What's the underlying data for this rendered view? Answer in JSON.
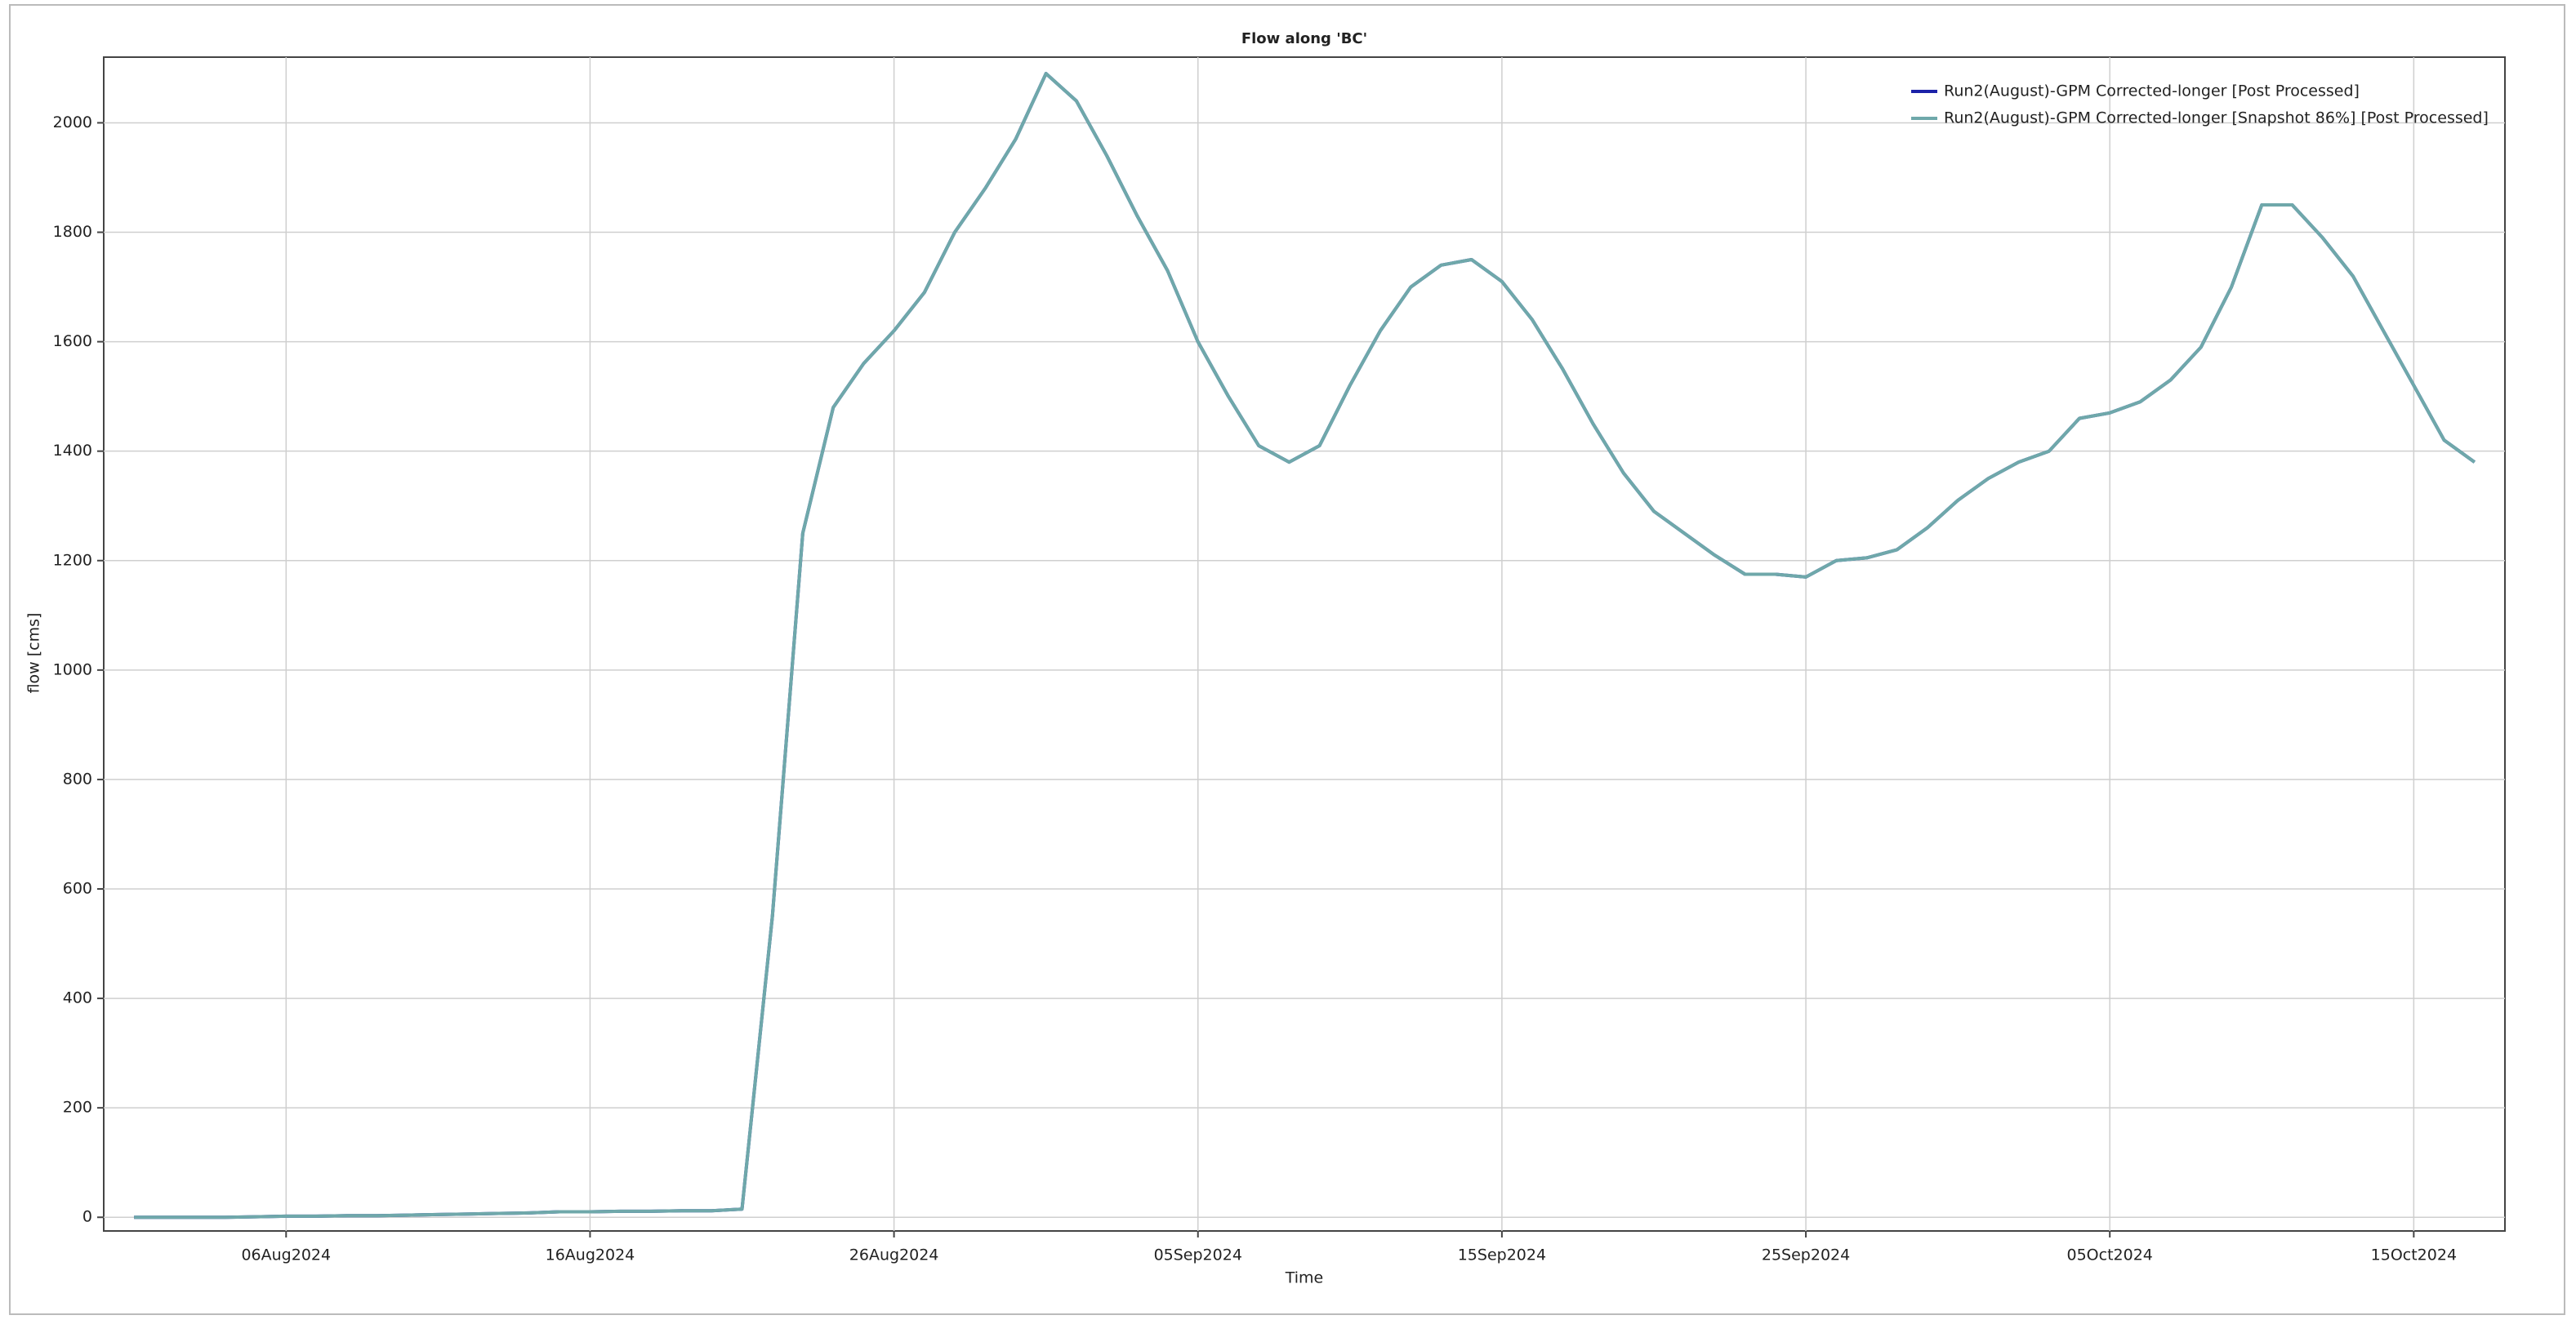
{
  "chart_data": {
    "type": "line",
    "title": "Flow along 'BC'",
    "x_label": "Time",
    "y_label": "flow [cms]",
    "x": [
      "2024-08-01",
      "2024-08-02",
      "2024-08-03",
      "2024-08-04",
      "2024-08-05",
      "2024-08-06",
      "2024-08-07",
      "2024-08-08",
      "2024-08-09",
      "2024-08-10",
      "2024-08-11",
      "2024-08-12",
      "2024-08-13",
      "2024-08-14",
      "2024-08-15",
      "2024-08-16",
      "2024-08-17",
      "2024-08-18",
      "2024-08-19",
      "2024-08-20",
      "2024-08-21",
      "2024-08-22",
      "2024-08-23",
      "2024-08-24",
      "2024-08-25",
      "2024-08-26",
      "2024-08-27",
      "2024-08-28",
      "2024-08-29",
      "2024-08-30",
      "2024-08-31",
      "2024-09-01",
      "2024-09-02",
      "2024-09-03",
      "2024-09-04",
      "2024-09-05",
      "2024-09-06",
      "2024-09-07",
      "2024-09-08",
      "2024-09-09",
      "2024-09-10",
      "2024-09-11",
      "2024-09-12",
      "2024-09-13",
      "2024-09-14",
      "2024-09-15",
      "2024-09-16",
      "2024-09-17",
      "2024-09-18",
      "2024-09-19",
      "2024-09-20",
      "2024-09-21",
      "2024-09-22",
      "2024-09-23",
      "2024-09-24",
      "2024-09-25",
      "2024-09-26",
      "2024-09-27",
      "2024-09-28",
      "2024-09-29",
      "2024-09-30",
      "2024-10-01",
      "2024-10-02",
      "2024-10-03",
      "2024-10-04",
      "2024-10-05",
      "2024-10-06",
      "2024-10-07",
      "2024-10-08",
      "2024-10-09",
      "2024-10-10",
      "2024-10-11",
      "2024-10-12",
      "2024-10-13",
      "2024-10-14",
      "2024-10-15",
      "2024-10-16",
      "2024-10-17"
    ],
    "series": [
      {
        "name": "Run2(August)-GPM Corrected-longer [Post Processed]",
        "color": "#1c22a8",
        "values": [
          0,
          0,
          0,
          0,
          1,
          2,
          2,
          3,
          3,
          4,
          5,
          6,
          7,
          8,
          10,
          10,
          11,
          11,
          12,
          12,
          15,
          550,
          1250,
          1480,
          1560,
          1620,
          1690,
          1800,
          1880,
          1970,
          2090,
          2040,
          1940,
          1830,
          1730,
          1600,
          1500,
          1410,
          1380,
          1410,
          1520,
          1620,
          1700,
          1740,
          1750,
          1710,
          1640,
          1550,
          1450,
          1360,
          1290,
          1250,
          1210,
          1175,
          1175,
          1170,
          1200,
          1205,
          1220,
          1260,
          1310,
          1350,
          1380,
          1400,
          1460,
          1470,
          1490,
          1530,
          1590,
          1700,
          1850,
          1850,
          1790,
          1720,
          1620,
          1520,
          1420,
          1380
        ]
      },
      {
        "name": "Run2(August)-GPM Corrected-longer [Snapshot 86%] [Post Processed]",
        "color": "#6fa8aa",
        "values": [
          0,
          0,
          0,
          0,
          1,
          2,
          2,
          3,
          3,
          4,
          5,
          6,
          7,
          8,
          10,
          10,
          11,
          11,
          12,
          12,
          15,
          550,
          1250,
          1480,
          1560,
          1620,
          1690,
          1800,
          1880,
          1970,
          2090,
          2040,
          1940,
          1830,
          1730,
          1600,
          1500,
          1410,
          1380,
          1410,
          1520,
          1620,
          1700,
          1740,
          1750,
          1710,
          1640,
          1550,
          1450,
          1360,
          1290,
          1250,
          1210,
          1175,
          1175,
          1170,
          1200,
          1205,
          1220,
          1260,
          1310,
          1350,
          1380,
          1400,
          1460,
          1470,
          1490,
          1530,
          1590,
          1700,
          1850,
          1850,
          1790,
          1720,
          1620,
          1520,
          1420,
          1380
        ]
      }
    ],
    "xlim": [
      "2024-07-31",
      "2024-10-18"
    ],
    "xticks": [
      {
        "value": "2024-08-06",
        "label": "06Aug2024"
      },
      {
        "value": "2024-08-16",
        "label": "16Aug2024"
      },
      {
        "value": "2024-08-26",
        "label": "26Aug2024"
      },
      {
        "value": "2024-09-05",
        "label": "05Sep2024"
      },
      {
        "value": "2024-09-15",
        "label": "15Sep2024"
      },
      {
        "value": "2024-09-25",
        "label": "25Sep2024"
      },
      {
        "value": "2024-10-05",
        "label": "05Oct2024"
      },
      {
        "value": "2024-10-15",
        "label": "15Oct2024"
      }
    ],
    "ylim": [
      -25,
      2120
    ],
    "yticks": [
      0,
      200,
      400,
      600,
      800,
      1000,
      1200,
      1400,
      1600,
      1800,
      2000
    ],
    "grid": true,
    "legend": "top-right"
  }
}
